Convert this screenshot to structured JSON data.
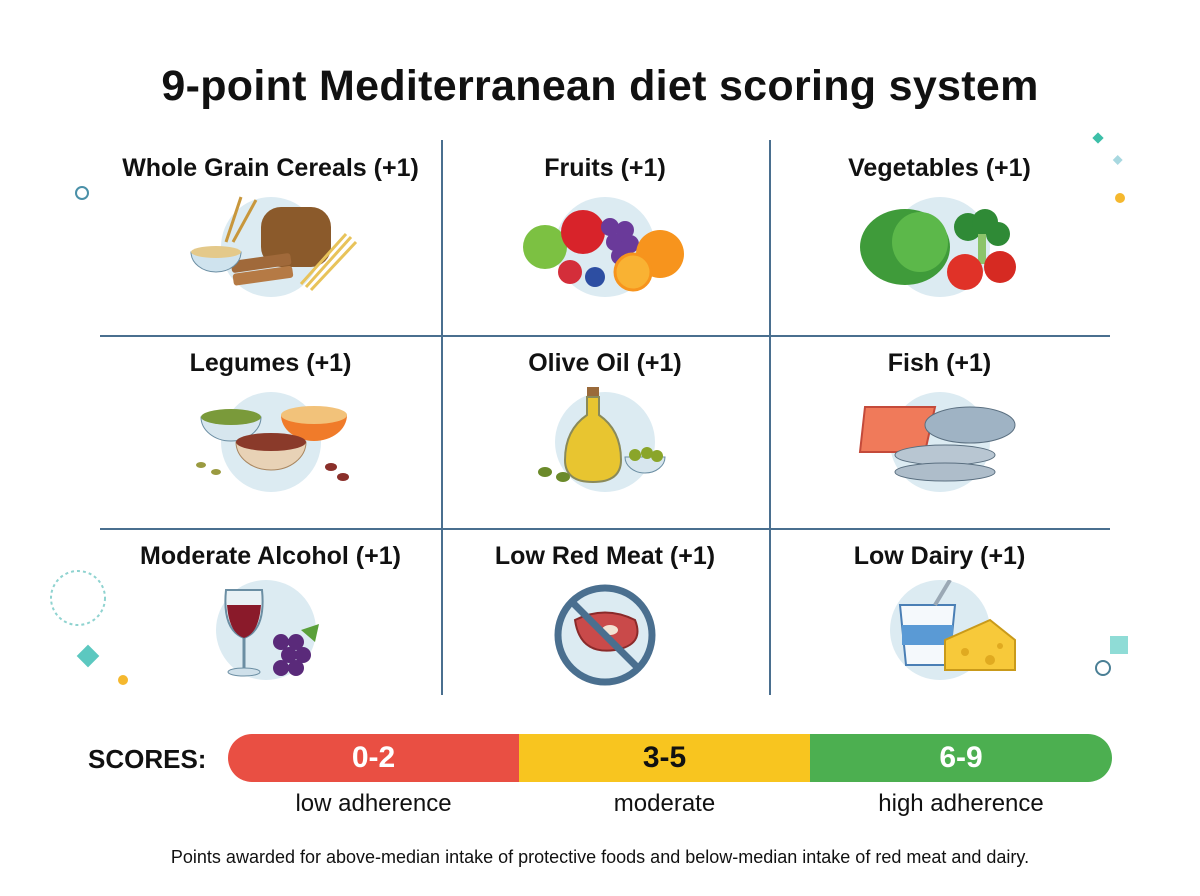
{
  "title": "9-point Mediterranean diet scoring system",
  "components": [
    {
      "label": "Whole Grain Cereals (+1)",
      "icon": "grains-bread-pasta-icon"
    },
    {
      "label": "Fruits (+1)",
      "icon": "fruits-icon"
    },
    {
      "label": "Vegetables (+1)",
      "icon": "vegetables-icon"
    },
    {
      "label": "Legumes (+1)",
      "icon": "legumes-icon"
    },
    {
      "label": "Olive Oil (+1)",
      "icon": "olive-oil-icon"
    },
    {
      "label": "Fish (+1)",
      "icon": "fish-icon"
    },
    {
      "label": "Moderate Alcohol (+1)",
      "icon": "wine-grapes-icon"
    },
    {
      "label": "Low Red Meat (+1)",
      "icon": "no-red-meat-icon"
    },
    {
      "label": "Low Dairy (+1)",
      "icon": "yogurt-cheese-icon"
    }
  ],
  "scores": {
    "label": "SCORES:",
    "ranges": [
      {
        "range": "0-2",
        "description": "low adherence",
        "color": "#e94f43"
      },
      {
        "range": "3-5",
        "description": "moderate",
        "color": "#f8c51f"
      },
      {
        "range": "6-9",
        "description": "high adherence",
        "color": "#4caf50"
      }
    ]
  },
  "footnote": "Points awarded for above-median intake of protective foods and below-median intake of red meat and dairy.",
  "colors": {
    "grid_line": "#4a6f8f",
    "icon_backdrop": "#dcebf2"
  }
}
